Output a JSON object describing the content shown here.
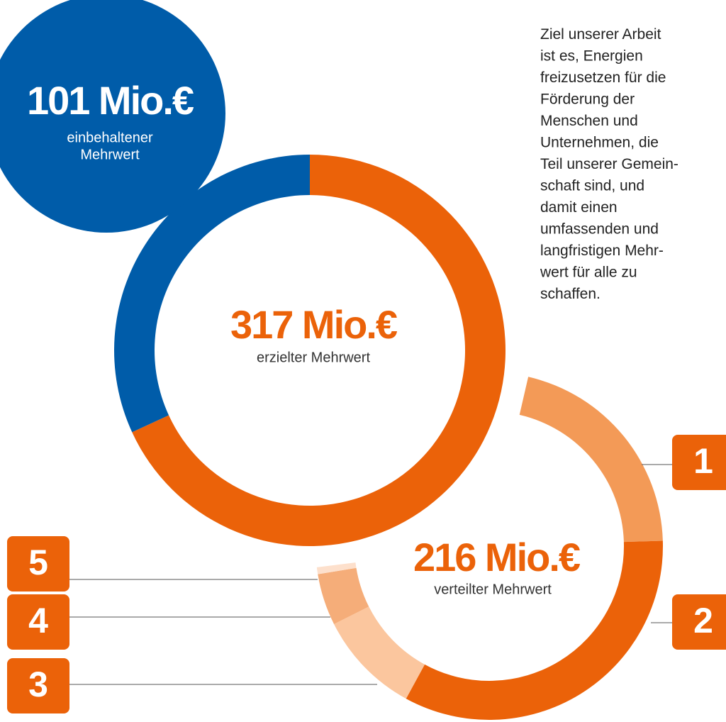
{
  "chart_data": [
    {
      "type": "donut",
      "title": "317 Mio.€",
      "subtitle": "erzielter Mehrwert",
      "values": [
        216,
        101
      ],
      "colors": [
        "#eb6209",
        "#005ca9"
      ],
      "annotation": {
        "title": "101 Mio.€",
        "text": [
          "einbehaltener",
          "Mehrwert"
        ]
      }
    },
    {
      "type": "donut",
      "title": "216 Mio.€",
      "subtitle": "verteilter Mehrwert",
      "categories": [
        "1",
        "2",
        "3",
        "4",
        "5"
      ],
      "values": [
        65,
        104,
        30,
        15,
        2
      ],
      "colors": [
        "#f39a57",
        "#eb6209",
        "#fbc69e",
        "#f5ad79",
        "#fde0cc"
      ]
    }
  ],
  "text_lines": [
    "Ziel unserer Arbeit",
    "ist es, Energien",
    "freizusetzen für die",
    "Förderung der",
    "Menschen und",
    "Unternehmen, die",
    "Teil unserer Gemein-",
    "schaft sind, und",
    "damit einen",
    "umfassenden und",
    "langfristigen Mehr-",
    "wert für alle zu",
    "schaffen."
  ]
}
